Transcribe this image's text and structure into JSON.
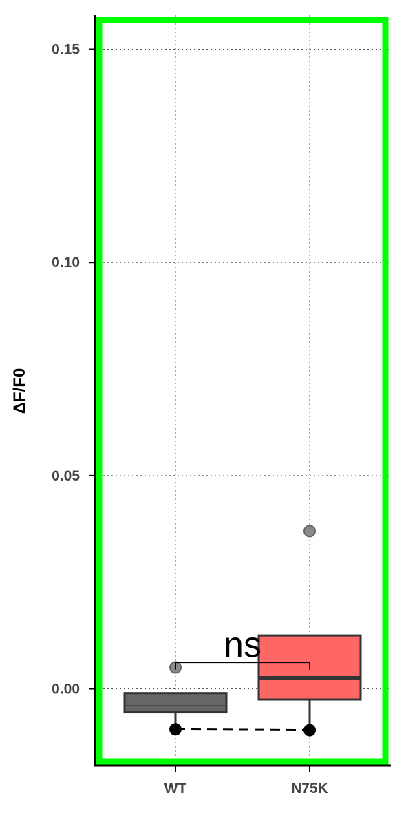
{
  "chart_data": {
    "type": "box",
    "title": "",
    "xlabel": "",
    "ylabel": "ΔF/F0",
    "categories": [
      "WT",
      "N75K"
    ],
    "ylim": [
      -0.018,
      0.158
    ],
    "yticks": [
      0.0,
      0.05,
      0.1,
      0.15
    ],
    "ytick_labels": [
      "0.00",
      "0.05",
      "0.10",
      "0.15"
    ],
    "grid": true,
    "grid_style": "dotted",
    "legend": "none",
    "boxes": [
      {
        "category": "WT",
        "color": "#666666",
        "whisker_low": -0.0095,
        "q1": -0.0055,
        "median": -0.004,
        "q3": -0.001,
        "whisker_high": -0.001,
        "outliers": [
          0.005
        ]
      },
      {
        "category": "N75K",
        "color": "#ff6666",
        "whisker_low": -0.0095,
        "q1": -0.0025,
        "median": 0.0025,
        "q3": 0.0125,
        "whisker_high": 0.0125,
        "outliers": [
          0.037
        ]
      }
    ],
    "paired_line": {
      "values": [
        -0.0095,
        -0.0097
      ],
      "style": "dashed",
      "color": "#000000"
    },
    "significance": {
      "label": "ns",
      "from": "WT",
      "to": "N75K",
      "y": 0.0062,
      "tip": 0.0045
    },
    "highlight_border_color": "#00ff00",
    "box_edge_color": "#333333",
    "outlier_color": "#7f7f7f"
  }
}
